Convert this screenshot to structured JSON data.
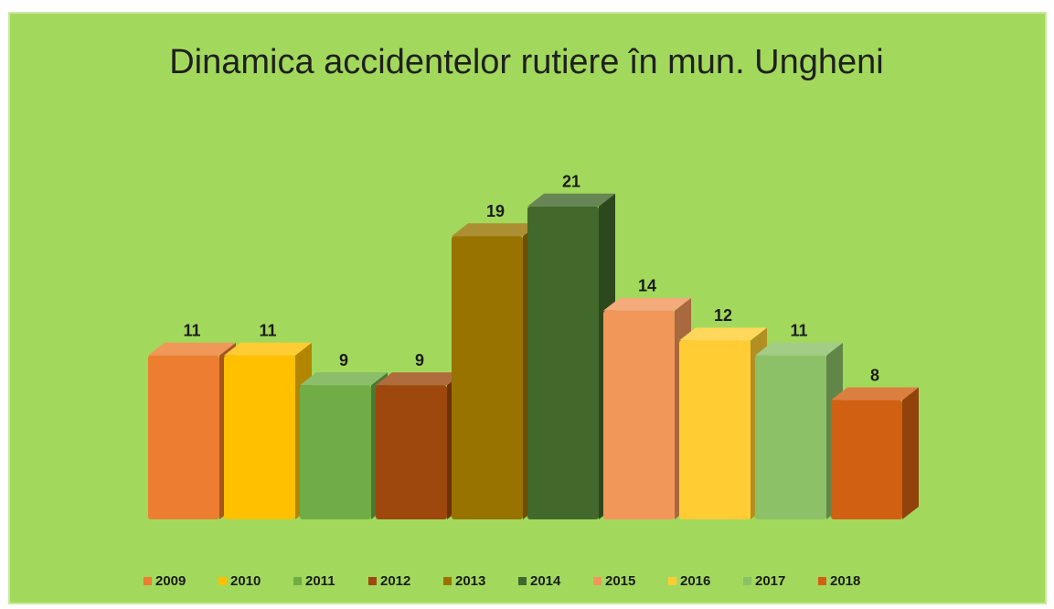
{
  "chart_data": {
    "type": "bar3d",
    "title": "Dinamica accidentelor rutiere în mun. Ungheni",
    "series": [
      {
        "name": "2009",
        "color": "#ed7d31",
        "values": [
          11
        ]
      },
      {
        "name": "2010",
        "color": "#ffc000",
        "values": [
          11
        ]
      },
      {
        "name": "2011",
        "color": "#70ad47",
        "values": [
          9
        ]
      },
      {
        "name": "2012",
        "color": "#9e480e",
        "values": [
          9
        ]
      },
      {
        "name": "2013",
        "color": "#997300",
        "values": [
          19
        ]
      },
      {
        "name": "2014",
        "color": "#43682b",
        "values": [
          21
        ]
      },
      {
        "name": "2015",
        "color": "#f1975a",
        "values": [
          14
        ]
      },
      {
        "name": "2016",
        "color": "#ffcd33",
        "values": [
          12
        ]
      },
      {
        "name": "2017",
        "color": "#8cc168",
        "values": [
          11
        ]
      },
      {
        "name": "2018",
        "color": "#d26012",
        "values": [
          8
        ]
      }
    ],
    "legend": "bottom"
  }
}
